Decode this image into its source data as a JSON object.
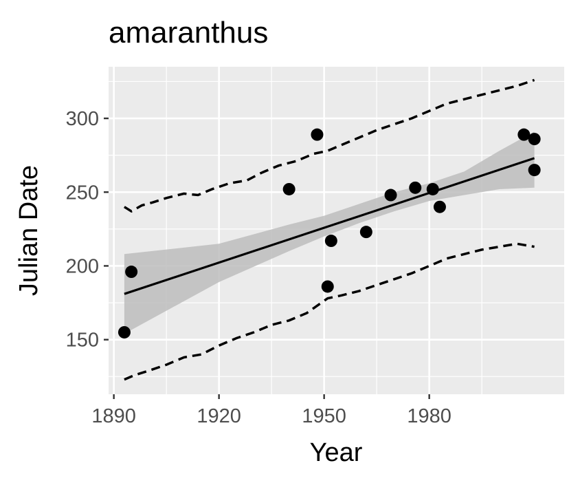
{
  "chart_data": {
    "type": "scatter",
    "title": "amaranthus",
    "xlabel": "Year",
    "ylabel": "Julian Date",
    "xlim": [
      1888.5,
      2018.5
    ],
    "ylim": [
      113,
      335
    ],
    "x_ticks": [
      1890,
      1920,
      1950,
      1980
    ],
    "y_ticks": [
      150,
      200,
      250,
      300
    ],
    "grid": true,
    "legend": "none",
    "colors": {
      "panel": "#ebebeb",
      "grid": "#ffffff",
      "points": "#000000",
      "ribbon": "#bdbdbd",
      "tick_text": "#4d4d4d"
    },
    "points": [
      {
        "x": 1893,
        "y": 155
      },
      {
        "x": 1895,
        "y": 196
      },
      {
        "x": 1940,
        "y": 252
      },
      {
        "x": 1948,
        "y": 289
      },
      {
        "x": 1951,
        "y": 186
      },
      {
        "x": 1952,
        "y": 217
      },
      {
        "x": 1962,
        "y": 223
      },
      {
        "x": 1969,
        "y": 248
      },
      {
        "x": 1976,
        "y": 253
      },
      {
        "x": 1981,
        "y": 252
      },
      {
        "x": 1983,
        "y": 240
      },
      {
        "x": 2007,
        "y": 289
      },
      {
        "x": 2010,
        "y": 286
      },
      {
        "x": 2010,
        "y": 265
      }
    ],
    "fit_line": {
      "x": [
        1893,
        2010
      ],
      "y": [
        181,
        273
      ]
    },
    "confidence_band": {
      "x": [
        1893,
        1920,
        1940,
        1950,
        1960,
        1970,
        1980,
        1990,
        2000,
        2010
      ],
      "lower": [
        154,
        189,
        210,
        220,
        229,
        237,
        244,
        248,
        252,
        253
      ],
      "upper": [
        208,
        215,
        228,
        234,
        242,
        250,
        256,
        264,
        278,
        291
      ]
    },
    "prediction_upper": {
      "x": [
        1893,
        1895,
        1898,
        1901,
        1905,
        1910,
        1914,
        1918,
        1923,
        1928,
        1932,
        1937,
        1942,
        1947,
        1951,
        1955,
        1960,
        1965,
        1970,
        1975,
        1980,
        1985,
        1990,
        1995,
        2000,
        2005,
        2010
      ],
      "y": [
        240,
        237,
        241,
        243,
        246,
        249,
        248,
        252,
        256,
        258,
        263,
        268,
        271,
        276,
        278,
        282,
        287,
        292,
        296,
        300,
        305,
        310,
        313,
        316,
        319,
        322,
        326
      ]
    },
    "prediction_lower": {
      "x": [
        1893,
        1896,
        1900,
        1905,
        1910,
        1915,
        1920,
        1925,
        1930,
        1935,
        1940,
        1945,
        1951,
        1955,
        1960,
        1965,
        1970,
        1975,
        1980,
        1985,
        1990,
        1995,
        2000,
        2005,
        2010
      ],
      "y": [
        123,
        126,
        129,
        133,
        138,
        140,
        146,
        151,
        155,
        160,
        163,
        168,
        178,
        180,
        183,
        187,
        191,
        195,
        200,
        205,
        208,
        211,
        213,
        215,
        213
      ]
    }
  }
}
